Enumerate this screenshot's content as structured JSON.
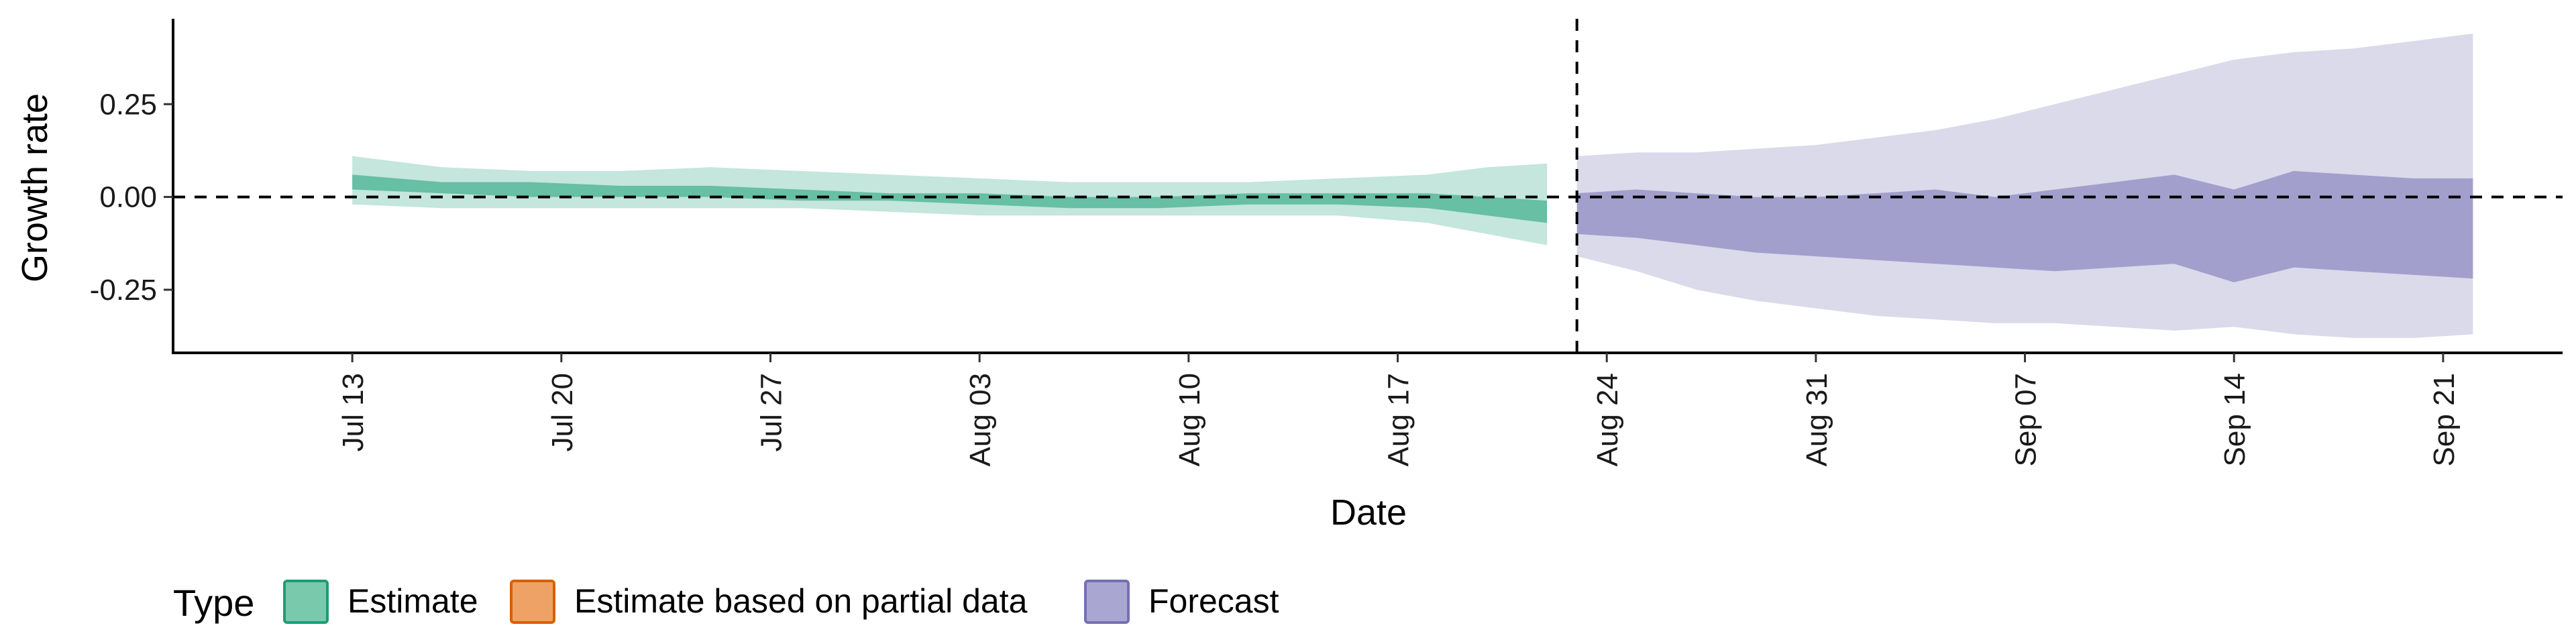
{
  "chart_data": {
    "type": "area",
    "title": "",
    "xlabel": "Date",
    "ylabel": "Growth rate",
    "ylim": [
      -0.42,
      0.48
    ],
    "xlim": [
      "2020-07-07",
      "2020-09-25"
    ],
    "x_ticks": [
      {
        "date": "2020-07-13",
        "label": "Jul 13"
      },
      {
        "date": "2020-07-20",
        "label": "Jul 20"
      },
      {
        "date": "2020-07-27",
        "label": "Jul 27"
      },
      {
        "date": "2020-08-03",
        "label": "Aug 03"
      },
      {
        "date": "2020-08-10",
        "label": "Aug 10"
      },
      {
        "date": "2020-08-17",
        "label": "Aug 17"
      },
      {
        "date": "2020-08-24",
        "label": "Aug 24"
      },
      {
        "date": "2020-08-31",
        "label": "Aug 31"
      },
      {
        "date": "2020-09-07",
        "label": "Sep 07"
      },
      {
        "date": "2020-09-14",
        "label": "Sep 14"
      },
      {
        "date": "2020-09-21",
        "label": "Sep 21"
      }
    ],
    "y_ticks": [
      {
        "value": 0.25,
        "label": "0.25"
      },
      {
        "value": 0.0,
        "label": "0.00"
      },
      {
        "value": -0.25,
        "label": "-0.25"
      }
    ],
    "reference_lines": {
      "horizontal_y": 0.0,
      "vertical_date": "2020-08-23"
    },
    "grid": false,
    "legend": {
      "title": "Type",
      "position": "bottom-left",
      "entries": [
        {
          "label": "Estimate",
          "fill": "#79c9ad",
          "stroke": "#1b9e77"
        },
        {
          "label": "Estimate based on partial data",
          "fill": "#eea265",
          "stroke": "#d95f02"
        },
        {
          "label": "Forecast",
          "fill": "#a9a6d2",
          "stroke": "#7570b3"
        }
      ]
    },
    "series": [
      {
        "type": "Estimate",
        "color": "#1b9e77",
        "x": [
          "2020-07-13",
          "2020-07-16",
          "2020-07-19",
          "2020-07-22",
          "2020-07-25",
          "2020-07-28",
          "2020-07-31",
          "2020-08-03",
          "2020-08-06",
          "2020-08-09",
          "2020-08-12",
          "2020-08-15",
          "2020-08-18",
          "2020-08-20",
          "2020-08-22"
        ],
        "outer_lower": [
          -0.02,
          -0.03,
          -0.03,
          -0.03,
          -0.03,
          -0.03,
          -0.04,
          -0.05,
          -0.05,
          -0.05,
          -0.05,
          -0.05,
          -0.07,
          -0.1,
          -0.13
        ],
        "outer_upper": [
          0.11,
          0.08,
          0.07,
          0.07,
          0.08,
          0.07,
          0.06,
          0.05,
          0.04,
          0.04,
          0.04,
          0.05,
          0.06,
          0.08,
          0.09
        ],
        "inner_lower": [
          0.02,
          0.01,
          0.0,
          0.0,
          0.0,
          -0.01,
          -0.01,
          -0.02,
          -0.03,
          -0.03,
          -0.02,
          -0.02,
          -0.03,
          -0.05,
          -0.07
        ],
        "inner_upper": [
          0.06,
          0.04,
          0.04,
          0.03,
          0.03,
          0.02,
          0.01,
          0.01,
          0.0,
          0.0,
          0.01,
          0.01,
          0.01,
          0.0,
          -0.01
        ]
      },
      {
        "type": "Forecast",
        "color": "#7570b3",
        "x": [
          "2020-08-23",
          "2020-08-25",
          "2020-08-27",
          "2020-08-29",
          "2020-08-31",
          "2020-09-02",
          "2020-09-04",
          "2020-09-06",
          "2020-09-08",
          "2020-09-10",
          "2020-09-12",
          "2020-09-14",
          "2020-09-16",
          "2020-09-18",
          "2020-09-20",
          "2020-09-22"
        ],
        "outer_lower": [
          -0.16,
          -0.2,
          -0.25,
          -0.28,
          -0.3,
          -0.32,
          -0.33,
          -0.34,
          -0.34,
          -0.35,
          -0.36,
          -0.35,
          -0.37,
          -0.38,
          -0.38,
          -0.37
        ],
        "outer_upper": [
          0.11,
          0.12,
          0.12,
          0.13,
          0.14,
          0.16,
          0.18,
          0.21,
          0.25,
          0.29,
          0.33,
          0.37,
          0.39,
          0.4,
          0.42,
          0.44
        ],
        "inner_lower": [
          -0.1,
          -0.11,
          -0.13,
          -0.15,
          -0.16,
          -0.17,
          -0.18,
          -0.19,
          -0.2,
          -0.19,
          -0.18,
          -0.23,
          -0.19,
          -0.2,
          -0.21,
          -0.22
        ],
        "inner_upper": [
          0.01,
          0.02,
          0.01,
          0.0,
          0.0,
          0.01,
          0.02,
          0.0,
          0.02,
          0.04,
          0.06,
          0.02,
          0.07,
          0.06,
          0.05,
          0.05
        ]
      }
    ]
  }
}
